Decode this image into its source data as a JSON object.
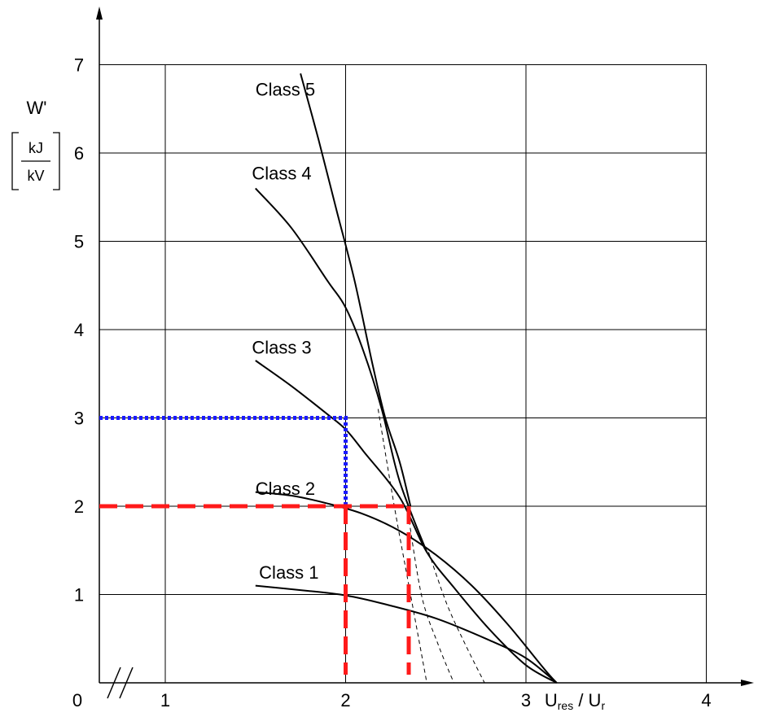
{
  "chart_data": {
    "type": "line",
    "title": "",
    "ylabel": "W'",
    "yunit_num": "kJ",
    "yunit_den": "kV",
    "xlabel_main": "U",
    "xlabel_sub1": "res",
    "xlabel_mid": " / U",
    "xlabel_sub2": "r",
    "origin_label": "0",
    "xlim": [
      0.64,
      4.0
    ],
    "ylim": [
      0,
      7
    ],
    "x_ticks": [
      {
        "value": 1,
        "label": "1"
      },
      {
        "value": 2,
        "label": "2"
      },
      {
        "value": 3,
        "label": "3"
      },
      {
        "value": 4,
        "label": "4"
      }
    ],
    "y_ticks": [
      {
        "value": 1,
        "label": "1"
      },
      {
        "value": 2,
        "label": "2"
      },
      {
        "value": 3,
        "label": "3"
      },
      {
        "value": 4,
        "label": "4"
      },
      {
        "value": 5,
        "label": "5"
      },
      {
        "value": 6,
        "label": "6"
      },
      {
        "value": 7,
        "label": "7"
      }
    ],
    "grid_x": [
      1,
      2,
      3,
      4
    ],
    "grid_y": [
      1,
      2,
      3,
      4,
      5,
      6,
      7
    ],
    "series": [
      {
        "name": "Class 1",
        "label_at": [
          1.52,
          1.18
        ],
        "x": [
          1.5,
          1.8,
          2.0,
          2.2,
          2.5,
          2.8,
          3.0,
          3.17
        ],
        "y": [
          1.1,
          1.04,
          0.99,
          0.9,
          0.73,
          0.48,
          0.28,
          0.0
        ]
      },
      {
        "name": "Class 2",
        "label_at": [
          1.5,
          2.13
        ],
        "x": [
          1.5,
          1.7,
          1.9,
          2.1,
          2.3,
          2.5,
          2.7,
          2.9,
          3.1,
          3.17
        ],
        "y": [
          2.16,
          2.12,
          2.03,
          1.91,
          1.72,
          1.45,
          1.1,
          0.66,
          0.16,
          0.0
        ]
      },
      {
        "name": "Class 3",
        "label_at": [
          1.48,
          3.73
        ],
        "x": [
          1.5,
          1.7,
          1.9,
          2.0,
          2.1,
          2.3,
          2.45,
          2.6,
          2.8,
          3.0,
          3.17
        ],
        "y": [
          3.65,
          3.36,
          3.04,
          2.87,
          2.62,
          2.1,
          1.48,
          1.08,
          0.6,
          0.2,
          0.0
        ]
      },
      {
        "name": "Class 4",
        "label_at": [
          1.48,
          5.7
        ],
        "x": [
          1.5,
          1.7,
          1.9,
          2.0,
          2.1,
          2.2,
          2.3,
          2.45
        ],
        "y": [
          5.6,
          5.15,
          4.55,
          4.25,
          3.75,
          3.1,
          2.28,
          1.48
        ]
      },
      {
        "name": "Class 5",
        "label_at": [
          1.5,
          6.65
        ],
        "x": [
          1.75,
          1.85,
          1.95,
          2.05,
          2.15,
          2.22,
          2.3,
          2.36
        ],
        "y": [
          6.9,
          6.15,
          5.35,
          4.55,
          3.6,
          3.0,
          2.5,
          2.0
        ]
      }
    ],
    "extrapolations": [
      {
        "x": [
          2.18,
          2.27,
          2.36,
          2.45
        ],
        "y": [
          3.1,
          2.0,
          1.0,
          0.0
        ]
      },
      {
        "x": [
          2.34,
          2.42,
          2.51,
          2.6
        ],
        "y": [
          2.0,
          1.0,
          0.45,
          0.0
        ]
      },
      {
        "x": [
          2.46,
          2.56,
          2.66,
          2.77
        ],
        "y": [
          1.48,
          0.9,
          0.45,
          0.0
        ]
      }
    ],
    "reference_blue": {
      "color": "#1a1aff",
      "x": 2.0,
      "y": 3.0
    },
    "reference_red": {
      "color": "#ff1a1a",
      "points": [
        {
          "x": 2.0,
          "y": 2.0
        },
        {
          "x": 2.35,
          "y": 2.0
        }
      ]
    }
  }
}
